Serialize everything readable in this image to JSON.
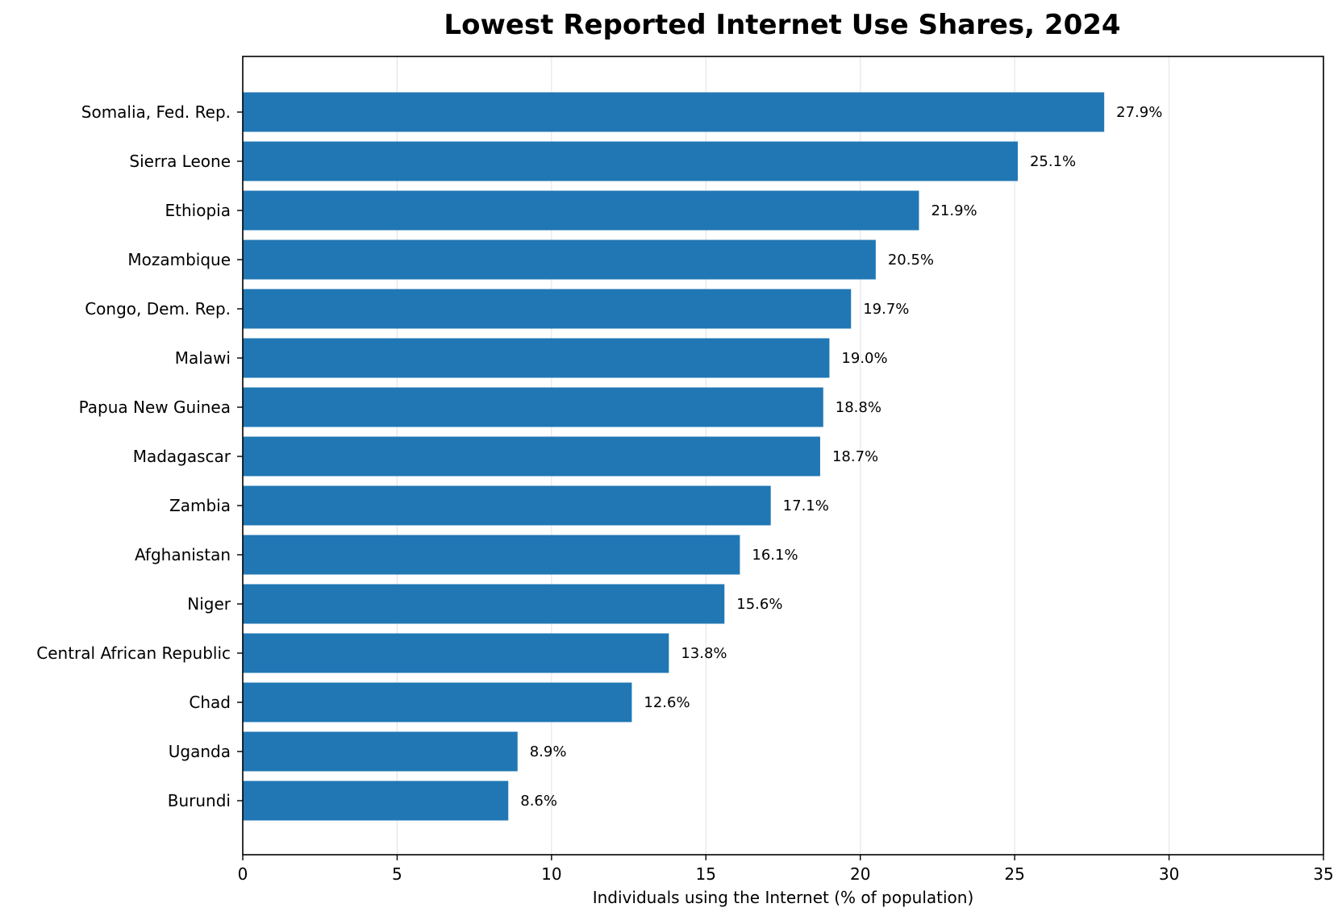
{
  "chart_data": {
    "type": "bar",
    "orientation": "horizontal",
    "title": "Lowest Reported Internet Use Shares, 2024",
    "xlabel": "Individuals using the Internet (% of population)",
    "ylabel": "",
    "xlim": [
      0,
      35
    ],
    "xticks": [
      0,
      5,
      10,
      15,
      20,
      25,
      30,
      35
    ],
    "categories": [
      "Somalia, Fed. Rep.",
      "Sierra Leone",
      "Ethiopia",
      "Mozambique",
      "Congo, Dem. Rep.",
      "Malawi",
      "Papua New Guinea",
      "Madagascar",
      "Zambia",
      "Afghanistan",
      "Niger",
      "Central African Republic",
      "Chad",
      "Uganda",
      "Burundi"
    ],
    "values": [
      27.9,
      25.1,
      21.9,
      20.5,
      19.7,
      19.0,
      18.8,
      18.7,
      17.1,
      16.1,
      15.6,
      13.8,
      12.6,
      8.9,
      8.6
    ],
    "value_labels": [
      "27.9%",
      "25.1%",
      "21.9%",
      "20.5%",
      "19.7%",
      "19.0%",
      "18.8%",
      "18.7%",
      "17.1%",
      "16.1%",
      "15.6%",
      "13.8%",
      "12.6%",
      "8.9%",
      "8.6%"
    ],
    "bar_color": "#2077b4",
    "grid": "vertical lines",
    "legend": "none"
  }
}
